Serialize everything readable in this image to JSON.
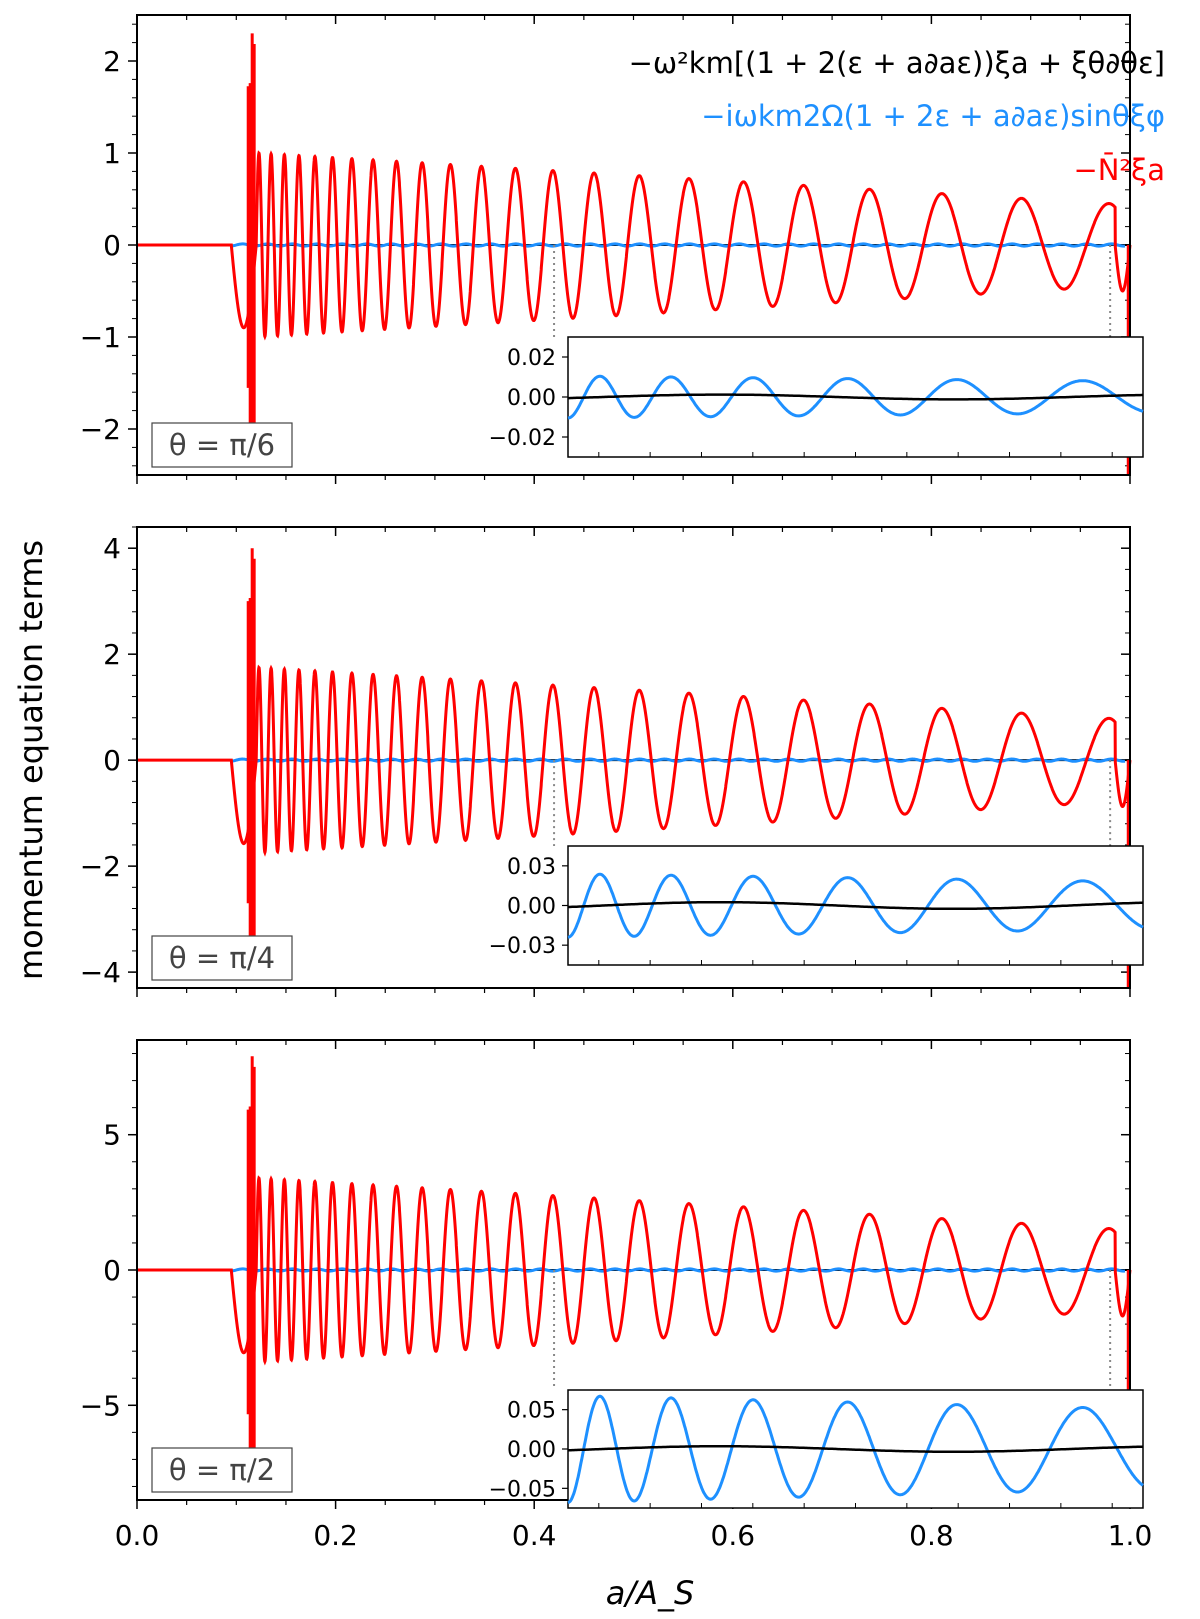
{
  "chart_data": {
    "type": "line",
    "ylabel": "momentum equation terms",
    "xlabel": "a/A_S",
    "xlim": [
      0.0,
      1.0
    ],
    "xticks": [
      "0.0",
      "0.2",
      "0.4",
      "0.6",
      "0.8",
      "1.0"
    ],
    "series": [
      {
        "name": "−ω²km[(1 + 2(ε + a∂aε))ξa + ξθ∂θε]",
        "color": "#000000"
      },
      {
        "name": "−iωkm2Ω(1 + 2ε + a∂aε)sinθξφ",
        "color": "#1e90ff"
      },
      {
        "name": "−N̄²ξa",
        "color": "#ff0000"
      }
    ],
    "panels": [
      {
        "label": "θ = π/6",
        "ylim": [
          -2.5,
          2.5
        ],
        "yticks": [
          -2,
          -1,
          0,
          1,
          2
        ],
        "ytick_labels": [
          "−2",
          "−1",
          "0",
          "1",
          "2"
        ],
        "red_amplitude": 1.0,
        "red_spike": 2.3,
        "inset": {
          "xlim": [
            0.42,
            0.98
          ],
          "ylim": [
            -0.03,
            0.03
          ],
          "yticks": [
            -0.02,
            0.0,
            0.02
          ],
          "ytick_labels": [
            "−0.02",
            "0.00",
            "0.02"
          ],
          "blue_amplitude": 0.0105,
          "black_amplitude": 0.0012
        }
      },
      {
        "label": "θ = π/4",
        "ylim": [
          -4.3,
          4.4
        ],
        "yticks": [
          -4,
          -2,
          0,
          2,
          4
        ],
        "ytick_labels": [
          "−4",
          "−2",
          "0",
          "2",
          "4"
        ],
        "red_amplitude": 1.75,
        "red_spike": 4.0,
        "inset": {
          "xlim": [
            0.42,
            0.98
          ],
          "ylim": [
            -0.045,
            0.045
          ],
          "yticks": [
            -0.03,
            0.0,
            0.03
          ],
          "ytick_labels": [
            "−0.03",
            "0.00",
            "0.03"
          ],
          "blue_amplitude": 0.024,
          "black_amplitude": 0.0025
        }
      },
      {
        "label": "θ = π/2",
        "ylim": [
          -8.5,
          8.5
        ],
        "yticks": [
          -5,
          0,
          5
        ],
        "ytick_labels": [
          "−5",
          "0",
          "5"
        ],
        "red_amplitude": 3.4,
        "red_spike": 7.9,
        "inset": {
          "xlim": [
            0.42,
            0.98
          ],
          "ylim": [
            -0.075,
            0.075
          ],
          "yticks": [
            -0.05,
            0.0,
            0.05
          ],
          "ytick_labels": [
            "−0.05",
            "0.00",
            "0.05"
          ],
          "blue_amplitude": 0.068,
          "black_amplitude": 0.0035
        }
      }
    ]
  }
}
